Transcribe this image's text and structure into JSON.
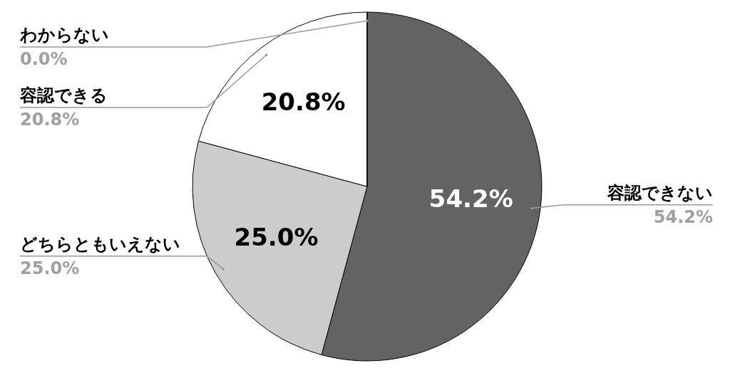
{
  "chart_data": {
    "type": "pie",
    "categories": [
      "容認できない",
      "どちらともいえない",
      "容認できる",
      "わからない"
    ],
    "values": [
      54.2,
      25.0,
      20.8,
      0.0
    ],
    "value_labels": [
      "54.2%",
      "25.0%",
      "20.8%",
      "0.0%"
    ],
    "colors": [
      "#636363",
      "#cccccc",
      "#ffffff",
      "#999999"
    ]
  }
}
